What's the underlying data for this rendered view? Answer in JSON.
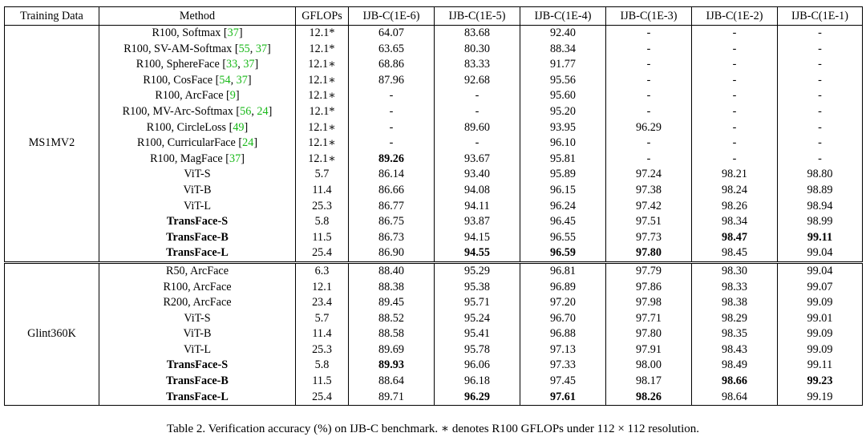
{
  "table": {
    "columns": [
      "Training Data",
      "Method",
      "GFLOPs",
      "IJB-C(1E-6)",
      "IJB-C(1E-5)",
      "IJB-C(1E-4)",
      "IJB-C(1E-3)",
      "IJB-C(1E-2)",
      "IJB-C(1E-1)"
    ],
    "groups": [
      {
        "training_data": "MS1MV2",
        "rows": [
          {
            "method": "R100, Softmax",
            "refs": [
              "37"
            ],
            "gflops": "12.1*",
            "values": [
              "64.07",
              "83.68",
              "92.40",
              "-",
              "-",
              "-"
            ],
            "bold": []
          },
          {
            "method": "R100, SV-AM-Softmax",
            "refs": [
              "55",
              "37"
            ],
            "gflops": "12.1*",
            "values": [
              "63.65",
              "80.30",
              "88.34",
              "-",
              "-",
              "-"
            ],
            "bold": []
          },
          {
            "method": "R100, SphereFace",
            "refs": [
              "33",
              "37"
            ],
            "gflops": "12.1∗",
            "values": [
              "68.86",
              "83.33",
              "91.77",
              "-",
              "-",
              "-"
            ],
            "bold": []
          },
          {
            "method": "R100, CosFace",
            "refs": [
              "54",
              "37"
            ],
            "gflops": "12.1∗",
            "values": [
              "87.96",
              "92.68",
              "95.56",
              "-",
              "-",
              "-"
            ],
            "bold": []
          },
          {
            "method": "R100, ArcFace",
            "refs": [
              "9"
            ],
            "gflops": "12.1∗",
            "values": [
              "-",
              "-",
              "95.60",
              "-",
              "-",
              "-"
            ],
            "bold": []
          },
          {
            "method": "R100, MV-Arc-Softmax",
            "refs": [
              "56",
              "24"
            ],
            "gflops": "12.1*",
            "values": [
              "-",
              "-",
              "95.20",
              "-",
              "-",
              "-"
            ],
            "bold": []
          },
          {
            "method": "R100, CircleLoss",
            "refs": [
              "49"
            ],
            "gflops": "12.1∗",
            "values": [
              "-",
              "89.60",
              "93.95",
              "96.29",
              "-",
              "-"
            ],
            "bold": []
          },
          {
            "method": "R100, CurricularFace",
            "refs": [
              "24"
            ],
            "gflops": "12.1∗",
            "values": [
              "-",
              "-",
              "96.10",
              "-",
              "-",
              "-"
            ],
            "bold": []
          },
          {
            "method": "R100, MagFace",
            "refs": [
              "37"
            ],
            "gflops": "12.1∗",
            "values": [
              "89.26",
              "93.67",
              "95.81",
              "-",
              "-",
              "-"
            ],
            "bold": [
              0
            ]
          },
          {
            "method": "ViT-S",
            "refs": [],
            "gflops": "5.7",
            "values": [
              "86.14",
              "93.40",
              "95.89",
              "97.24",
              "98.21",
              "98.80"
            ],
            "bold": []
          },
          {
            "method": "ViT-B",
            "refs": [],
            "gflops": "11.4",
            "values": [
              "86.66",
              "94.08",
              "96.15",
              "97.38",
              "98.24",
              "98.89"
            ],
            "bold": []
          },
          {
            "method": "ViT-L",
            "refs": [],
            "gflops": "25.3",
            "values": [
              "86.77",
              "94.11",
              "96.24",
              "97.42",
              "98.26",
              "98.94"
            ],
            "bold": []
          },
          {
            "method": "TransFace-S",
            "refs": [],
            "method_bold": true,
            "gflops": "5.8",
            "values": [
              "86.75",
              "93.87",
              "96.45",
              "97.51",
              "98.34",
              "98.99"
            ],
            "bold": []
          },
          {
            "method": "TransFace-B",
            "refs": [],
            "method_bold": true,
            "gflops": "11.5",
            "values": [
              "86.73",
              "94.15",
              "96.55",
              "97.73",
              "98.47",
              "99.11"
            ],
            "bold": [
              4,
              5
            ]
          },
          {
            "method": "TransFace-L",
            "refs": [],
            "method_bold": true,
            "gflops": "25.4",
            "values": [
              "86.90",
              "94.55",
              "96.59",
              "97.80",
              "98.45",
              "99.04"
            ],
            "bold": [
              1,
              2,
              3
            ]
          }
        ]
      },
      {
        "training_data": "Glint360K",
        "rows": [
          {
            "method": "R50, ArcFace",
            "refs": [],
            "gflops": "6.3",
            "values": [
              "88.40",
              "95.29",
              "96.81",
              "97.79",
              "98.30",
              "99.04"
            ],
            "bold": []
          },
          {
            "method": "R100, ArcFace",
            "refs": [],
            "gflops": "12.1",
            "values": [
              "88.38",
              "95.38",
              "96.89",
              "97.86",
              "98.33",
              "99.07"
            ],
            "bold": []
          },
          {
            "method": "R200, ArcFace",
            "refs": [],
            "gflops": "23.4",
            "values": [
              "89.45",
              "95.71",
              "97.20",
              "97.98",
              "98.38",
              "99.09"
            ],
            "bold": []
          },
          {
            "method": "ViT-S",
            "refs": [],
            "gflops": "5.7",
            "values": [
              "88.52",
              "95.24",
              "96.70",
              "97.71",
              "98.29",
              "99.01"
            ],
            "bold": []
          },
          {
            "method": "ViT-B",
            "refs": [],
            "gflops": "11.4",
            "values": [
              "88.58",
              "95.41",
              "96.88",
              "97.80",
              "98.35",
              "99.09"
            ],
            "bold": []
          },
          {
            "method": "ViT-L",
            "refs": [],
            "gflops": "25.3",
            "values": [
              "89.69",
              "95.78",
              "97.13",
              "97.91",
              "98.43",
              "99.09"
            ],
            "bold": []
          },
          {
            "method": "TransFace-S",
            "refs": [],
            "method_bold": true,
            "gflops": "5.8",
            "values": [
              "89.93",
              "96.06",
              "97.33",
              "98.00",
              "98.49",
              "99.11"
            ],
            "bold": [
              0
            ]
          },
          {
            "method": "TransFace-B",
            "refs": [],
            "method_bold": true,
            "gflops": "11.5",
            "values": [
              "88.64",
              "96.18",
              "97.45",
              "98.17",
              "98.66",
              "99.23"
            ],
            "bold": [
              4,
              5
            ]
          },
          {
            "method": "TransFace-L",
            "refs": [],
            "method_bold": true,
            "gflops": "25.4",
            "values": [
              "89.71",
              "96.29",
              "97.61",
              "98.26",
              "98.64",
              "99.19"
            ],
            "bold": [
              1,
              2,
              3
            ]
          }
        ]
      }
    ]
  },
  "caption": "Table 2. Verification accuracy (%) on IJB-C benchmark. ∗ denotes R100 GFLOPs under 112 × 112 resolution.",
  "colors": {
    "reference_link": "#18b818",
    "text": "#000000"
  }
}
